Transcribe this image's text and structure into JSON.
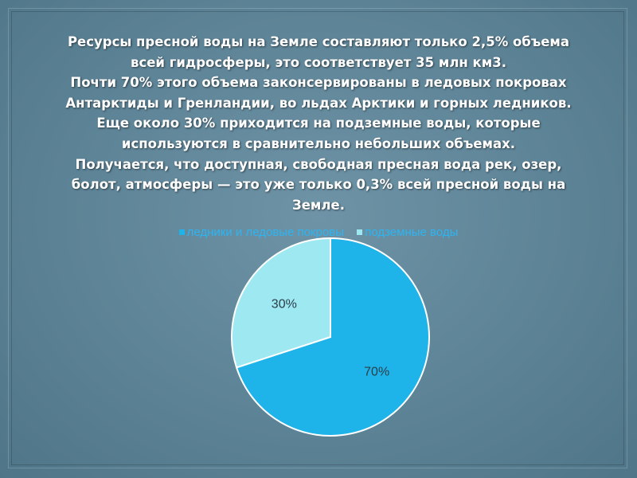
{
  "text": {
    "lines": [
      "Ресурсы пресной воды на Земле составляют только 2,5% объема",
      "всей гидросферы, это соответствует 35 млн км3.",
      "Почти 70% этого объема законсервированы в ледовых покровах",
      "Антарктиды и Гренландии, во льдах Арктики и горных ледников.",
      "Еще около 30% приходится на подземные воды, которые",
      "используются в сравнительно небольших объемах.",
      "Получается, что доступная, свободная пресная вода рек, озер,",
      "болот, атмосферы — это уже только 0,3% всей пресной воды на",
      "Земле."
    ]
  },
  "chart_data": {
    "type": "pie",
    "title": "",
    "legend_position": "top",
    "slices": [
      {
        "name": "ледники и ледовые покровы",
        "value": 70,
        "label": "70%",
        "color": "#1eb4ea"
      },
      {
        "name": "подземные воды",
        "value": 30,
        "label": "30%",
        "color": "#9ee8f2"
      }
    ]
  }
}
